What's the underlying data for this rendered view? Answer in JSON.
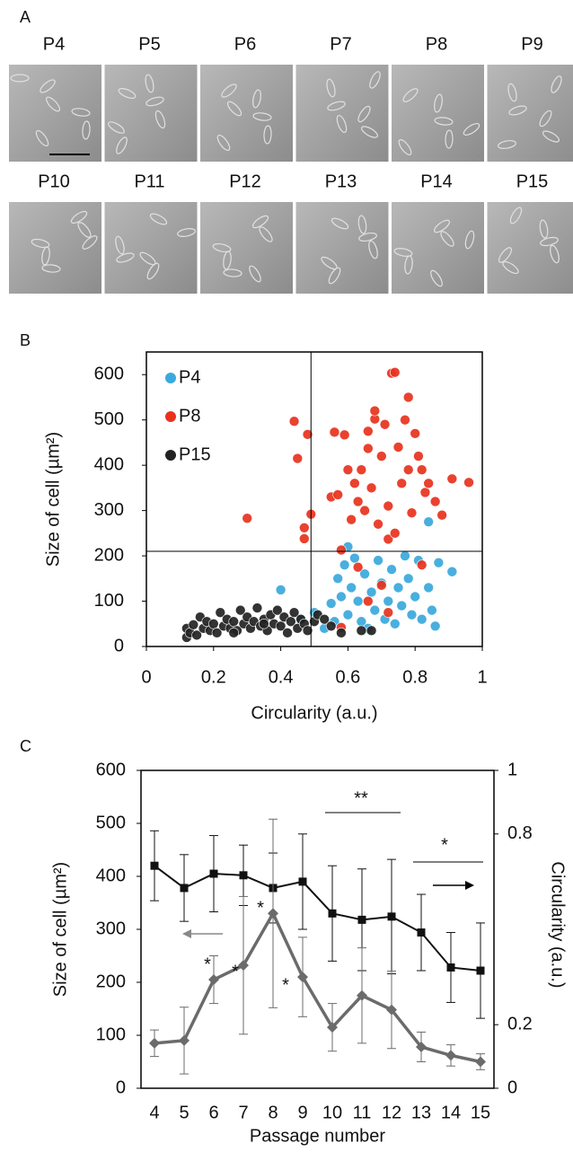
{
  "panel_a": {
    "label": "A",
    "images": [
      "P4",
      "P5",
      "P6",
      "P7",
      "P8",
      "P9",
      "P10",
      "P11",
      "P12",
      "P13",
      "P14",
      "P15"
    ]
  },
  "chart_data": [
    {
      "type": "scatter",
      "panel": "B",
      "x_label": "Circularity (a.u.)",
      "y_label": "Size of cell (µm²)",
      "xlim": [
        0,
        1
      ],
      "xticks": [
        0,
        0.2,
        0.4,
        0.6,
        0.8,
        1
      ],
      "ylim": [
        0,
        650
      ],
      "yticks": [
        0,
        100,
        200,
        300,
        400,
        500,
        600
      ],
      "vline": 0.49,
      "hline": 210,
      "legend": "upper left",
      "series": [
        {
          "name": "P4",
          "color": "#3aa9dc",
          "x": [
            0.4,
            0.46,
            0.5,
            0.53,
            0.55,
            0.56,
            0.57,
            0.58,
            0.59,
            0.6,
            0.6,
            0.61,
            0.62,
            0.63,
            0.64,
            0.65,
            0.66,
            0.67,
            0.68,
            0.69,
            0.7,
            0.71,
            0.72,
            0.73,
            0.74,
            0.75,
            0.76,
            0.77,
            0.78,
            0.79,
            0.8,
            0.81,
            0.82,
            0.84,
            0.84,
            0.85,
            0.87,
            0.91,
            0.86
          ],
          "values": [
            125,
            60,
            75,
            40,
            95,
            55,
            150,
            110,
            180,
            220,
            70,
            130,
            195,
            100,
            55,
            160,
            40,
            120,
            80,
            190,
            140,
            60,
            100,
            170,
            50,
            130,
            90,
            200,
            150,
            70,
            110,
            190,
            60,
            275,
            130,
            80,
            185,
            165,
            45
          ]
        },
        {
          "name": "P8",
          "color": "#e8321e",
          "x": [
            0.3,
            0.44,
            0.45,
            0.47,
            0.47,
            0.48,
            0.49,
            0.55,
            0.56,
            0.57,
            0.58,
            0.59,
            0.6,
            0.61,
            0.62,
            0.63,
            0.64,
            0.65,
            0.66,
            0.66,
            0.67,
            0.68,
            0.68,
            0.69,
            0.7,
            0.71,
            0.72,
            0.72,
            0.73,
            0.74,
            0.74,
            0.75,
            0.76,
            0.77,
            0.78,
            0.78,
            0.79,
            0.8,
            0.81,
            0.82,
            0.83,
            0.84,
            0.86,
            0.88,
            0.91,
            0.96,
            0.63,
            0.7,
            0.82,
            0.72,
            0.58,
            0.66
          ],
          "values": [
            283,
            497,
            415,
            262,
            238,
            468,
            292,
            330,
            473,
            335,
            213,
            467,
            390,
            280,
            360,
            320,
            390,
            300,
            437,
            475,
            350,
            502,
            520,
            270,
            420,
            490,
            310,
            237,
            603,
            605,
            250,
            440,
            360,
            500,
            550,
            390,
            295,
            470,
            420,
            390,
            340,
            360,
            320,
            290,
            370,
            362,
            175,
            135,
            180,
            75,
            42,
            100
          ]
        },
        {
          "name": "P15",
          "color": "#222222",
          "x": [
            0.12,
            0.12,
            0.13,
            0.14,
            0.15,
            0.16,
            0.17,
            0.18,
            0.19,
            0.2,
            0.21,
            0.22,
            0.23,
            0.24,
            0.25,
            0.26,
            0.27,
            0.28,
            0.29,
            0.3,
            0.31,
            0.32,
            0.33,
            0.34,
            0.35,
            0.36,
            0.37,
            0.38,
            0.39,
            0.4,
            0.41,
            0.42,
            0.43,
            0.44,
            0.45,
            0.46,
            0.47,
            0.48,
            0.5,
            0.51,
            0.53,
            0.55,
            0.58,
            0.64,
            0.67,
            0.26,
            0.35
          ],
          "values": [
            20,
            40,
            30,
            48,
            25,
            65,
            40,
            55,
            35,
            50,
            30,
            75,
            45,
            60,
            40,
            55,
            35,
            80,
            50,
            65,
            40,
            55,
            85,
            45,
            60,
            35,
            70,
            50,
            80,
            45,
            65,
            30,
            55,
            75,
            40,
            60,
            50,
            35,
            55,
            70,
            60,
            45,
            30,
            35,
            35,
            30,
            50
          ]
        }
      ]
    },
    {
      "type": "line",
      "panel": "C",
      "x_label": "Passage number",
      "y_label": "Size of cell (µm²)",
      "y2_label": "Circularity (a.u.)",
      "categories": [
        "4",
        "5",
        "6",
        "7",
        "8",
        "9",
        "10",
        "11",
        "12",
        "13",
        "14",
        "15"
      ],
      "ylim": [
        0,
        600
      ],
      "yticks": [
        0,
        100,
        200,
        300,
        400,
        500,
        600
      ],
      "y2lim": [
        0,
        1
      ],
      "y2ticks": [
        0,
        0.2,
        0.8,
        1
      ],
      "annotations": [
        "*",
        "*",
        "*",
        "*",
        "**",
        "*"
      ],
      "series": [
        {
          "color": "#111111",
          "marker": "square",
          "axis": "y2",
          "values": [
            0.7,
            0.63,
            0.675,
            0.67,
            0.63,
            0.65,
            0.55,
            0.53,
            0.54,
            0.49,
            0.38,
            0.37
          ],
          "errors": [
            0.11,
            0.105,
            0.12,
            0.095,
            0.11,
            0.15,
            0.15,
            0.16,
            0.18,
            0.12,
            0.11,
            0.15
          ]
        },
        {
          "color": "#6b6b6b",
          "marker": "diamond",
          "axis": "y",
          "values": [
            85,
            90,
            205,
            232,
            330,
            210,
            115,
            175,
            148,
            78,
            62,
            50
          ],
          "errors": [
            25,
            63,
            45,
            130,
            178,
            75,
            45,
            90,
            73,
            28,
            20,
            15
          ]
        }
      ]
    }
  ]
}
